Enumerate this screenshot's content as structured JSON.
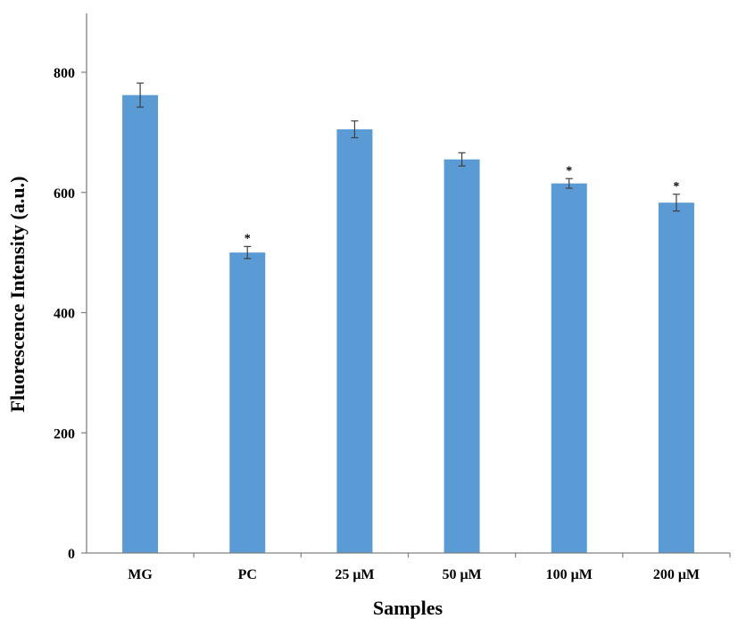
{
  "chart_data": {
    "type": "bar",
    "title": "",
    "xlabel": "Samples",
    "ylabel": "Fluorescence Intensity (a.u.)",
    "ylim": [
      0,
      900
    ],
    "yticks": [
      0,
      200,
      400,
      600,
      800
    ],
    "grid": false,
    "legend": "none",
    "bar_color": "#5b9bd5",
    "errorbar_color": "#404040",
    "categories": [
      "MG",
      "PC",
      "25 μM",
      "50 μM",
      "100 μM",
      "200 μM"
    ],
    "values": [
      762,
      500,
      705,
      655,
      615,
      583
    ],
    "errors": [
      20,
      10,
      14,
      11,
      8,
      14
    ],
    "significance": [
      "",
      "*",
      "",
      "",
      "*",
      "*"
    ]
  }
}
